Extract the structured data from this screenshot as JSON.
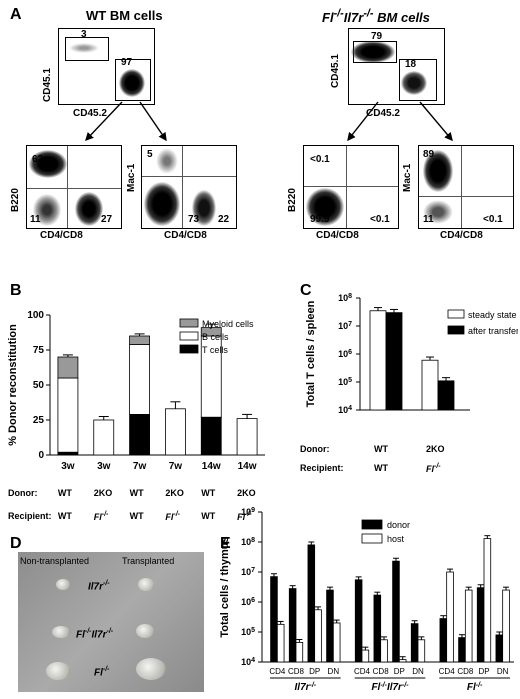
{
  "panel_a": {
    "letter": "A",
    "wt_title": "WT BM cells",
    "ko_title_html": "Fl<sup>-/-</sup>Il7r<sup>-/-</sup> BM cells",
    "wt_top": {
      "xlabel": "CD45.2",
      "ylabel": "CD45.1",
      "gate_left": "3",
      "gate_right": "97"
    },
    "ko_top": {
      "xlabel": "CD45.2",
      "ylabel": "CD45.1",
      "gate_left": "79",
      "gate_right": "18"
    },
    "wt_b220": {
      "xlabel": "CD4/CD8",
      "ylabel": "B220",
      "tl": "62",
      "bl": "11",
      "br": "27"
    },
    "wt_mac": {
      "xlabel": "CD4/CD8",
      "ylabel": "Mac-1",
      "tl": "5",
      "bl": "73",
      "br": "22"
    },
    "ko_b220": {
      "xlabel": "CD4/CD8",
      "ylabel": "B220",
      "tl": "<0.1",
      "bl": "99.9",
      "br": "<0.1"
    },
    "ko_mac": {
      "xlabel": "CD4/CD8",
      "ylabel": "Mac-1",
      "tl": "89",
      "bl": "11",
      "br": "<0.1"
    }
  },
  "panel_b": {
    "letter": "B",
    "ylabel": "% Donor reconstitution",
    "legend": [
      "Myeloid cells",
      "B cells",
      "T cells"
    ],
    "donor_label": "Donor:",
    "recipient_label": "Recipient:",
    "donors": [
      "WT",
      "2KO",
      "WT",
      "2KO",
      "WT",
      "2KO"
    ],
    "recipients": [
      "WT",
      "Fl-/-",
      "WT",
      "Fl-/-",
      "WT",
      "Fl-/-"
    ]
  },
  "panel_c": {
    "letter": "C",
    "ylabel": "Total T cells / spleen",
    "legend": [
      "steady state",
      "after transfer"
    ],
    "donor_label": "Donor:",
    "recipient_label": "Recipient:",
    "donors": [
      "WT",
      "2KO"
    ],
    "recipients": [
      "WT",
      "Fl-/-"
    ]
  },
  "panel_d": {
    "letter": "D",
    "col1": "Non-transplanted",
    "col2": "Transplanted",
    "row1": "Il7r-/-",
    "row2": "Fl-/-Il7r-/-",
    "row3": "Fl-/-"
  },
  "panel_e": {
    "letter": "E",
    "ylabel": "Total cells / thymus",
    "legend": [
      "donor",
      "host"
    ],
    "groups": [
      "Il7r-/-",
      "Fl-/-Il7r-/-",
      "Fl-/-"
    ],
    "subsets": [
      "CD4",
      "CD8",
      "DP",
      "DN"
    ]
  },
  "chart_data": [
    {
      "type": "bar",
      "panel": "B",
      "stacked": true,
      "categories": [
        "3w",
        "3w",
        "7w",
        "7w",
        "14w",
        "14w"
      ],
      "ylim": [
        0,
        100
      ],
      "yticks": [
        0,
        25,
        50,
        75,
        100
      ],
      "series": [
        {
          "name": "T cells",
          "color": "#000000",
          "values": [
            2,
            0,
            29,
            0,
            27,
            0
          ]
        },
        {
          "name": "B cells",
          "color": "#ffffff",
          "values": [
            53,
            25,
            50,
            33,
            58,
            26
          ]
        },
        {
          "name": "Myeloid cells",
          "color": "#999999",
          "values": [
            15,
            0,
            6,
            0,
            6,
            0
          ]
        }
      ],
      "errors": [
        1.5,
        2.5,
        1.5,
        5,
        2.5,
        3
      ]
    },
    {
      "type": "bar",
      "panel": "C",
      "scale": "log",
      "categories": [
        "WT",
        "2KO"
      ],
      "ylim": [
        10000,
        100000000
      ],
      "ytick_labels": [
        "10^4",
        "10^5",
        "10^6",
        "10^7",
        "10^8"
      ],
      "series": [
        {
          "name": "steady state",
          "color": "#ffffff",
          "values": [
            35000000,
            600000
          ]
        },
        {
          "name": "after transfer",
          "color": "#000000",
          "values": [
            30000000,
            110000
          ]
        }
      ]
    },
    {
      "type": "bar",
      "panel": "E",
      "scale": "log",
      "ylim": [
        10000,
        1000000000
      ],
      "ytick_labels": [
        "10^4",
        "10^5",
        "10^6",
        "10^7",
        "10^8",
        "10^9"
      ],
      "categories": [
        "CD4",
        "CD8",
        "DP",
        "DN",
        "CD4",
        "CD8",
        "DP",
        "DN",
        "CD4",
        "CD8",
        "DP",
        "DN"
      ],
      "series": [
        {
          "name": "donor",
          "color": "#000000",
          "values": [
            7000000,
            2800000,
            80000000,
            2500000,
            5500000,
            1700000,
            23000000,
            190000,
            280000,
            65000,
            3000000,
            80000
          ]
        },
        {
          "name": "host",
          "color": "#ffffff",
          "values": [
            180000,
            45000,
            550000,
            200000,
            25000,
            55000,
            12000,
            55000,
            10000000,
            2500000,
            130000000,
            2500000
          ]
        }
      ]
    }
  ]
}
